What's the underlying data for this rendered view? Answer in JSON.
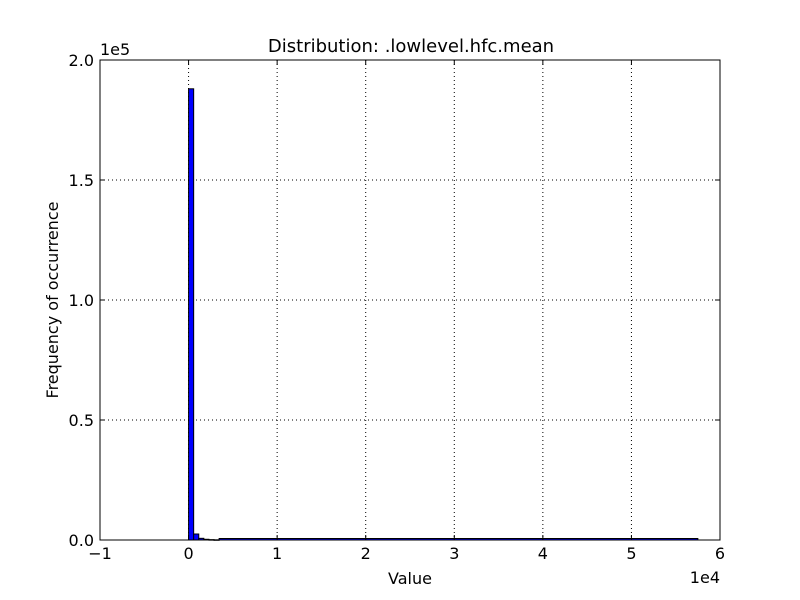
{
  "chart_data": {
    "type": "bar",
    "title": "Distribution: .lowlevel.hfc.mean",
    "xlabel": "Value",
    "ylabel": "Frequency of occurrence",
    "xlim": [
      -10000,
      60000
    ],
    "ylim": [
      0,
      200000
    ],
    "x_ticks": [
      -10000,
      0,
      10000,
      20000,
      30000,
      40000,
      50000,
      60000
    ],
    "y_ticks": [
      0,
      50000,
      100000,
      150000,
      200000
    ],
    "x_tick_labels": [
      "−1",
      "0",
      "1",
      "2",
      "3",
      "4",
      "5",
      "6"
    ],
    "y_tick_labels": [
      "0.0",
      "0.5",
      "1.0",
      "1.5",
      "2.0"
    ],
    "x_offset_label": "1e4",
    "y_offset_label": "1e5",
    "grid": true,
    "bar_color": "#0000ff",
    "bin_edges": [
      0,
      575,
      1150,
      1725,
      2300,
      2875,
      3450
    ],
    "values": [
      188000,
      2500,
      700,
      300,
      150,
      80
    ],
    "tail_range": [
      3450,
      57500
    ],
    "tail_value": 20
  }
}
